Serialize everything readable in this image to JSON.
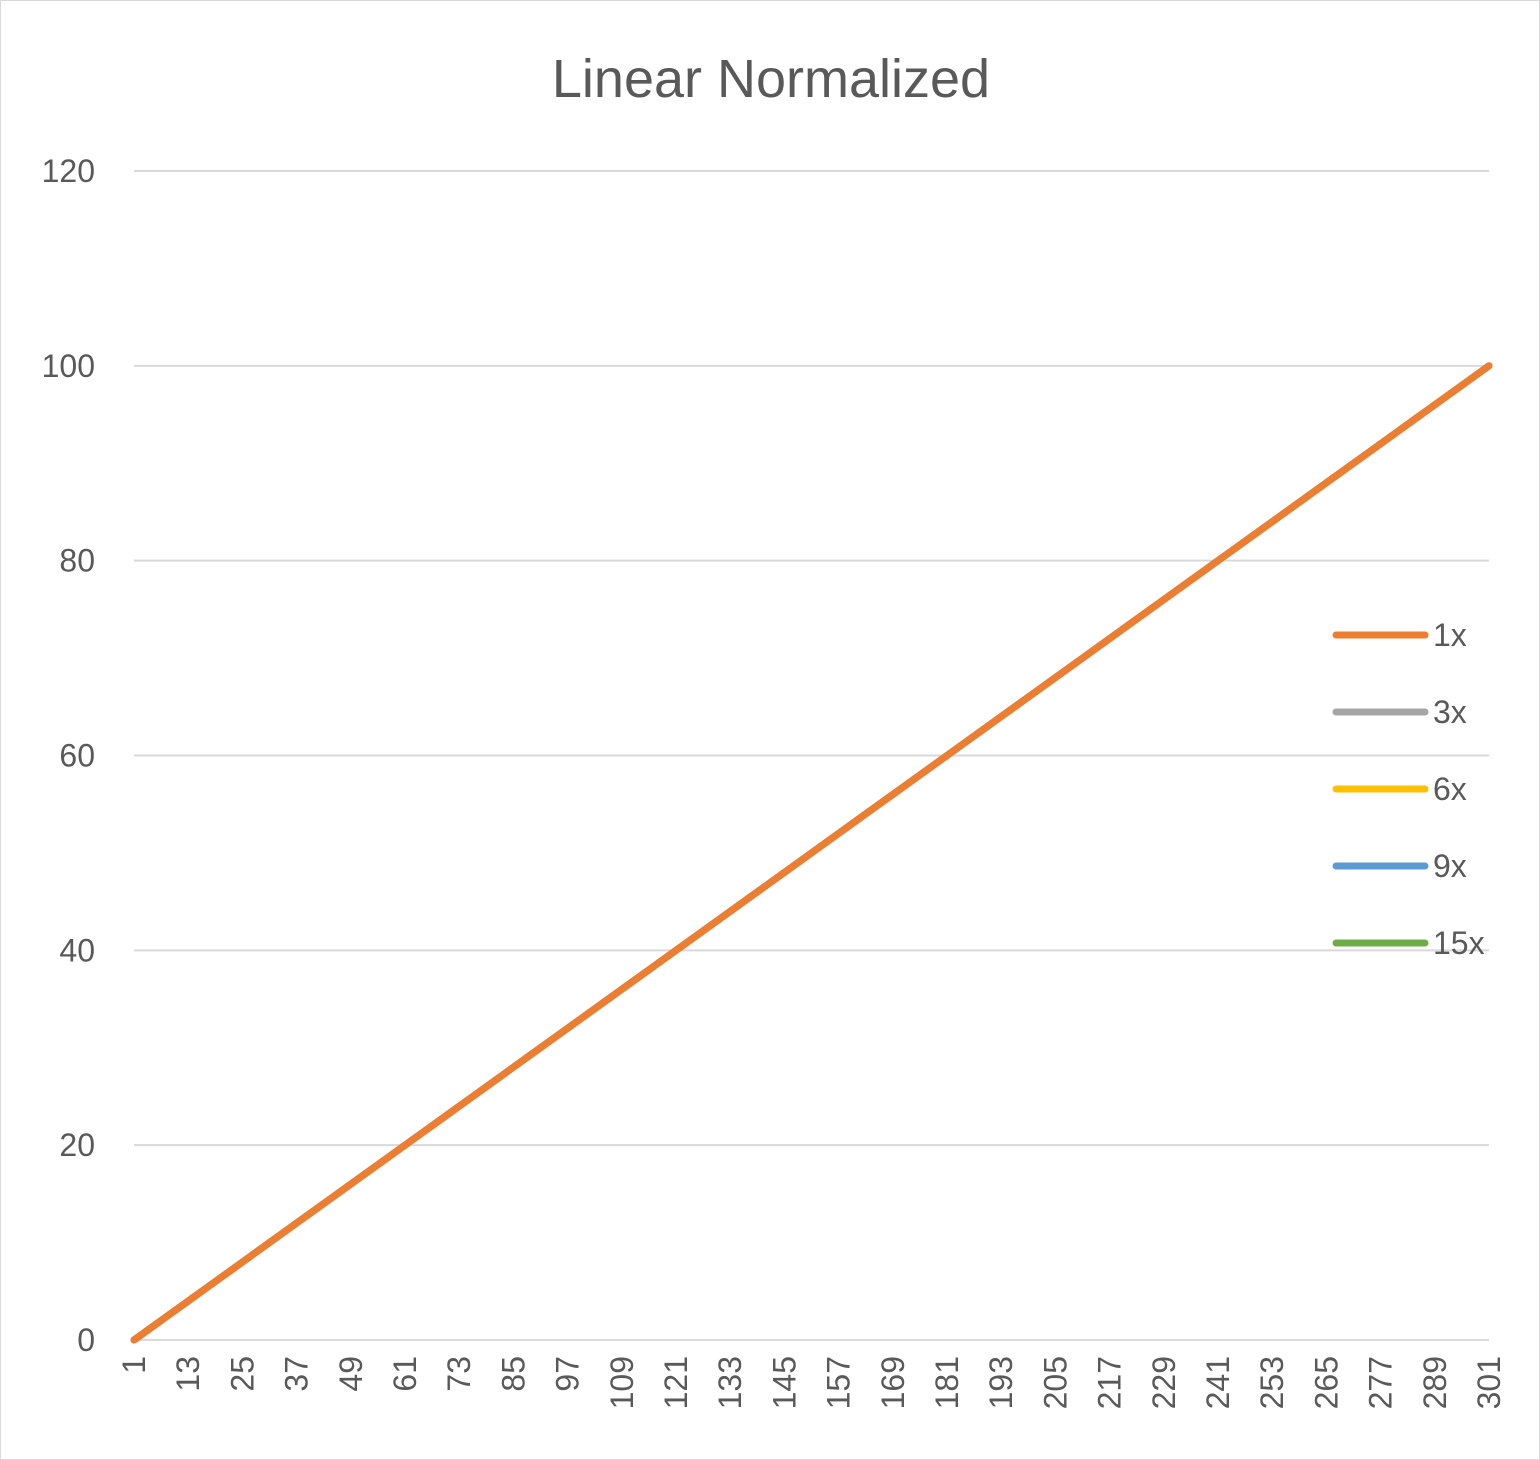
{
  "chart_data": {
    "type": "line",
    "title": "Linear Normalized",
    "xlabel": "",
    "ylabel": "",
    "ylim": [
      0,
      120
    ],
    "y_ticks": [
      0,
      20,
      40,
      60,
      80,
      100,
      120
    ],
    "x_range": [
      1,
      301
    ],
    "x_ticks": [
      1,
      13,
      25,
      37,
      49,
      61,
      73,
      85,
      97,
      109,
      121,
      133,
      145,
      157,
      169,
      181,
      193,
      205,
      217,
      229,
      241,
      253,
      265,
      277,
      289,
      301
    ],
    "grid": true,
    "legend": "right",
    "series": [
      {
        "name": "1x",
        "color": "#ED7D31",
        "x": [
          1,
          301
        ],
        "y": [
          0,
          100
        ]
      },
      {
        "name": "3x",
        "color": "#A5A5A5",
        "x": [
          1,
          301
        ],
        "y": [
          0,
          100
        ]
      },
      {
        "name": "6x",
        "color": "#FFC000",
        "x": [
          1,
          301
        ],
        "y": [
          0,
          100
        ]
      },
      {
        "name": "9x",
        "color": "#5B9BD5",
        "x": [
          1,
          301
        ],
        "y": [
          0,
          100
        ]
      },
      {
        "name": "15x",
        "color": "#70AD47",
        "x": [
          1,
          301
        ],
        "y": [
          0,
          100
        ]
      }
    ]
  }
}
